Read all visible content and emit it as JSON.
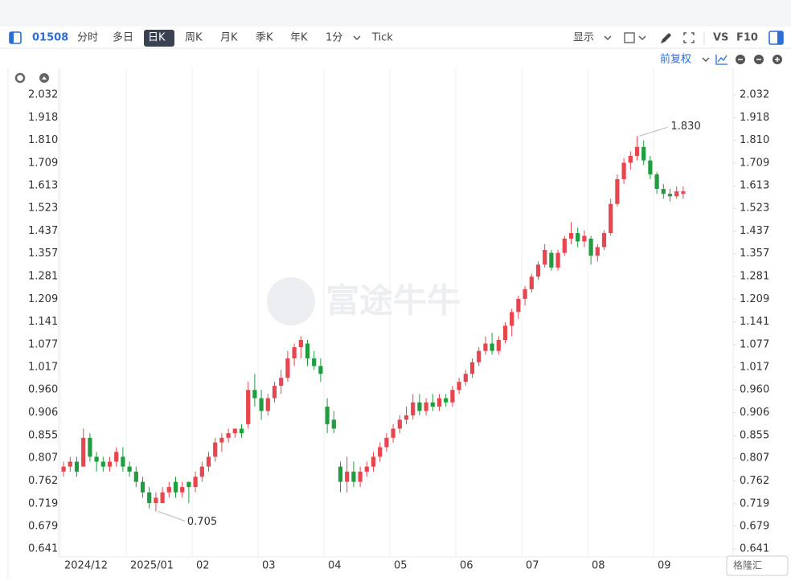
{
  "toolbar": {
    "code": "01508",
    "tabs": [
      "分时",
      "多日",
      "日K",
      "周K",
      "月K",
      "季K",
      "年K",
      "1分",
      "Tick"
    ],
    "display": "显示",
    "vs": "VS",
    "f10": "F10",
    "adjust": "前复权"
  },
  "watermark": "富途牛牛",
  "logo": "格隆汇",
  "chart_data": {
    "type": "candlestick",
    "up_color": "#e8464f",
    "down_color": "#1f9d3f",
    "log_scale": true,
    "grid": "x",
    "annotations": [
      "1.830",
      "0.705"
    ],
    "categories": [
      "2024/12",
      null,
      null,
      null,
      null,
      null,
      null,
      null,
      null,
      null,
      "2025/01",
      null,
      null,
      null,
      null,
      null,
      null,
      null,
      null,
      null,
      "02",
      null,
      null,
      null,
      null,
      null,
      null,
      null,
      null,
      null,
      "03",
      null,
      null,
      null,
      null,
      null,
      null,
      null,
      null,
      null,
      "04",
      null,
      null,
      null,
      null,
      null,
      null,
      null,
      null,
      null,
      "05",
      null,
      null,
      null,
      null,
      null,
      null,
      null,
      null,
      null,
      "06",
      null,
      null,
      null,
      null,
      null,
      null,
      null,
      null,
      null,
      "07",
      null,
      null,
      null,
      null,
      null,
      null,
      null,
      null,
      null,
      "08",
      null,
      null,
      null,
      null,
      null,
      null,
      null,
      null,
      null,
      "09",
      null,
      null,
      null,
      null
    ],
    "open": [
      0.78,
      0.79,
      0.8,
      0.79,
      0.85,
      0.81,
      0.8,
      0.79,
      0.8,
      0.81,
      0.79,
      0.78,
      0.76,
      0.74,
      0.72,
      0.72,
      0.74,
      0.76,
      0.74,
      0.76,
      0.75,
      0.77,
      0.79,
      0.81,
      0.84,
      0.85,
      0.86,
      0.87,
      0.88,
      0.96,
      0.94,
      0.91,
      0.94,
      0.97,
      0.99,
      1.04,
      1.07,
      1.08,
      1.04,
      1.02,
      0.92,
      0.89,
      0.79,
      0.76,
      0.78,
      0.76,
      0.78,
      0.79,
      0.81,
      0.83,
      0.85,
      0.87,
      0.89,
      0.9,
      0.93,
      0.91,
      0.93,
      0.92,
      0.94,
      0.93,
      0.96,
      0.98,
      1.0,
      1.03,
      1.06,
      1.08,
      1.06,
      1.09,
      1.13,
      1.17,
      1.21,
      1.24,
      1.28,
      1.32,
      1.36,
      1.31,
      1.36,
      1.41,
      1.43,
      1.4,
      1.41,
      1.35,
      1.38,
      1.43,
      1.54,
      1.64,
      1.71,
      1.74,
      1.78,
      1.72,
      1.66,
      1.6,
      1.58,
      1.57,
      1.58
    ],
    "high": [
      0.8,
      0.81,
      0.81,
      0.87,
      0.86,
      0.82,
      0.81,
      0.81,
      0.83,
      0.83,
      0.8,
      0.79,
      0.77,
      0.75,
      0.74,
      0.75,
      0.76,
      0.77,
      0.76,
      0.76,
      0.78,
      0.8,
      0.82,
      0.85,
      0.86,
      0.87,
      0.87,
      0.88,
      0.98,
      1.0,
      0.96,
      0.95,
      0.98,
      1.01,
      1.06,
      1.08,
      1.1,
      1.09,
      1.06,
      1.04,
      0.94,
      0.91,
      0.8,
      0.81,
      0.8,
      0.79,
      0.8,
      0.82,
      0.84,
      0.86,
      0.88,
      0.9,
      0.92,
      0.95,
      0.95,
      0.94,
      0.95,
      0.95,
      0.95,
      0.97,
      0.99,
      1.01,
      1.04,
      1.07,
      1.1,
      1.11,
      1.1,
      1.14,
      1.18,
      1.22,
      1.25,
      1.29,
      1.33,
      1.39,
      1.37,
      1.37,
      1.42,
      1.47,
      1.45,
      1.44,
      1.42,
      1.39,
      1.44,
      1.56,
      1.66,
      1.73,
      1.76,
      1.83,
      1.81,
      1.74,
      1.67,
      1.62,
      1.6,
      1.61,
      1.61
    ],
    "low": [
      0.77,
      0.78,
      0.77,
      0.79,
      0.8,
      0.78,
      0.78,
      0.78,
      0.79,
      0.78,
      0.77,
      0.75,
      0.73,
      0.71,
      0.705,
      0.72,
      0.73,
      0.73,
      0.73,
      0.72,
      0.74,
      0.76,
      0.78,
      0.8,
      0.82,
      0.84,
      0.85,
      0.85,
      0.87,
      0.92,
      0.89,
      0.9,
      0.93,
      0.95,
      0.98,
      1.02,
      1.04,
      1.02,
      1.01,
      0.98,
      0.86,
      0.86,
      0.74,
      0.74,
      0.75,
      0.75,
      0.77,
      0.78,
      0.8,
      0.82,
      0.84,
      0.86,
      0.88,
      0.89,
      0.9,
      0.9,
      0.91,
      0.91,
      0.92,
      0.92,
      0.95,
      0.97,
      0.99,
      1.02,
      1.05,
      1.05,
      1.05,
      1.08,
      1.1,
      1.15,
      1.19,
      1.23,
      1.27,
      1.31,
      1.3,
      1.3,
      1.35,
      1.39,
      1.38,
      1.38,
      1.32,
      1.33,
      1.37,
      1.42,
      1.53,
      1.62,
      1.68,
      1.72,
      1.7,
      1.64,
      1.58,
      1.56,
      1.55,
      1.56,
      1.56
    ],
    "close": [
      0.79,
      0.8,
      0.78,
      0.85,
      0.81,
      0.8,
      0.79,
      0.8,
      0.82,
      0.79,
      0.78,
      0.76,
      0.74,
      0.72,
      0.73,
      0.74,
      0.75,
      0.74,
      0.75,
      0.75,
      0.77,
      0.79,
      0.81,
      0.84,
      0.85,
      0.86,
      0.87,
      0.86,
      0.96,
      0.94,
      0.91,
      0.94,
      0.97,
      0.99,
      1.04,
      1.07,
      1.09,
      1.04,
      1.02,
      1.0,
      0.88,
      0.87,
      0.76,
      0.78,
      0.76,
      0.78,
      0.79,
      0.81,
      0.83,
      0.85,
      0.87,
      0.89,
      0.9,
      0.93,
      0.91,
      0.93,
      0.92,
      0.94,
      0.93,
      0.96,
      0.98,
      1.0,
      1.03,
      1.06,
      1.08,
      1.06,
      1.09,
      1.13,
      1.17,
      1.21,
      1.24,
      1.28,
      1.32,
      1.37,
      1.31,
      1.36,
      1.41,
      1.43,
      1.4,
      1.42,
      1.35,
      1.38,
      1.43,
      1.54,
      1.64,
      1.71,
      1.74,
      1.78,
      1.72,
      1.66,
      1.6,
      1.58,
      1.57,
      1.59,
      1.59
    ],
    "ylim": [
      0.641,
      2.032
    ],
    "yticks": [
      0.641,
      0.679,
      0.719,
      0.762,
      0.807,
      0.855,
      0.906,
      {
        "value": 0.96,
        "label": "0.960"
      },
      1.017,
      1.077,
      1.141,
      1.209,
      1.281,
      1.357,
      1.437,
      1.523,
      1.613,
      1.709,
      {
        "value": 1.81,
        "label": "1.810"
      },
      1.918,
      2.032
    ]
  }
}
